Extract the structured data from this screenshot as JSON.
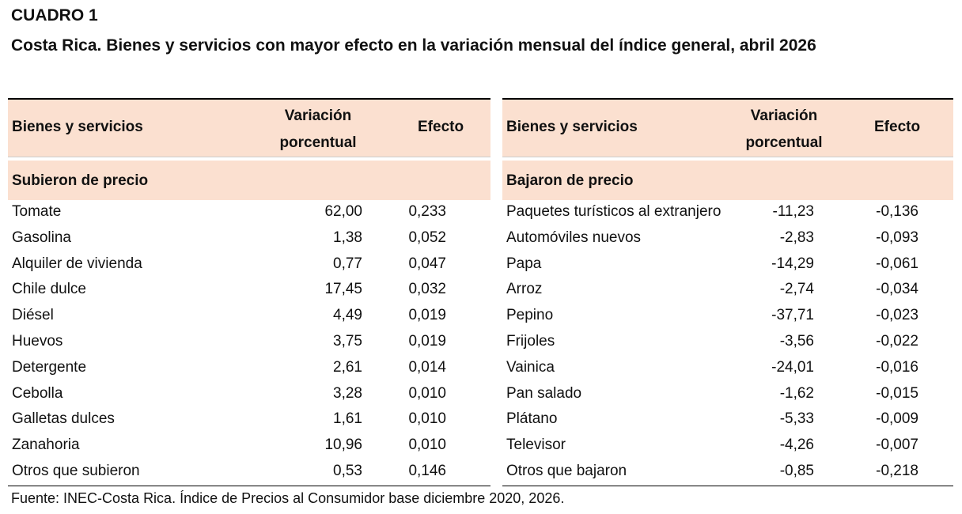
{
  "cuadro": "CUADRO 1",
  "title": "Costa Rica. Bienes y servicios con mayor efecto en la variación mensual del índice general, abril 2026",
  "headers": {
    "item": "Bienes y servicios",
    "variation_line1": "Variación",
    "variation_line2": "porcentual",
    "effect": "Efecto"
  },
  "left": {
    "section": "Subieron de precio",
    "rows": [
      {
        "name": "Tomate",
        "variation": "62,00",
        "effect": "0,233"
      },
      {
        "name": "Gasolina",
        "variation": "1,38",
        "effect": "0,052"
      },
      {
        "name": "Alquiler de vivienda",
        "variation": "0,77",
        "effect": "0,047"
      },
      {
        "name": "Chile dulce",
        "variation": "17,45",
        "effect": "0,032"
      },
      {
        "name": "Diésel",
        "variation": "4,49",
        "effect": "0,019"
      },
      {
        "name": "Huevos",
        "variation": "3,75",
        "effect": "0,019"
      },
      {
        "name": "Detergente",
        "variation": "2,61",
        "effect": "0,014"
      },
      {
        "name": "Cebolla",
        "variation": "3,28",
        "effect": "0,010"
      },
      {
        "name": "Galletas dulces",
        "variation": "1,61",
        "effect": "0,010"
      },
      {
        "name": "Zanahoria",
        "variation": "10,96",
        "effect": "0,010"
      },
      {
        "name": "Otros que subieron",
        "variation": "0,53",
        "effect": "0,146"
      }
    ]
  },
  "right": {
    "section": "Bajaron de precio",
    "rows": [
      {
        "name": "Paquetes turísticos al extranjero",
        "variation": "-11,23",
        "effect": "-0,136"
      },
      {
        "name": "Automóviles nuevos",
        "variation": "-2,83",
        "effect": "-0,093"
      },
      {
        "name": "Papa",
        "variation": "-14,29",
        "effect": "-0,061"
      },
      {
        "name": "Arroz",
        "variation": "-2,74",
        "effect": "-0,034"
      },
      {
        "name": "Pepino",
        "variation": "-37,71",
        "effect": "-0,023"
      },
      {
        "name": "Frijoles",
        "variation": "-3,56",
        "effect": "-0,022"
      },
      {
        "name": "Vainica",
        "variation": "-24,01",
        "effect": "-0,016"
      },
      {
        "name": "Pan salado",
        "variation": "-1,62",
        "effect": "-0,015"
      },
      {
        "name": "Plátano",
        "variation": "-5,33",
        "effect": "-0,009"
      },
      {
        "name": "Televisor",
        "variation": "-4,26",
        "effect": "-0,007"
      },
      {
        "name": "Otros que bajaron",
        "variation": "-0,85",
        "effect": "-0,218"
      }
    ]
  },
  "source": "Fuente: INEC-Costa Rica. Índice de Precios al Consumidor base diciembre 2020, 2026.",
  "colors": {
    "header_fill": "#fbe0d0"
  }
}
